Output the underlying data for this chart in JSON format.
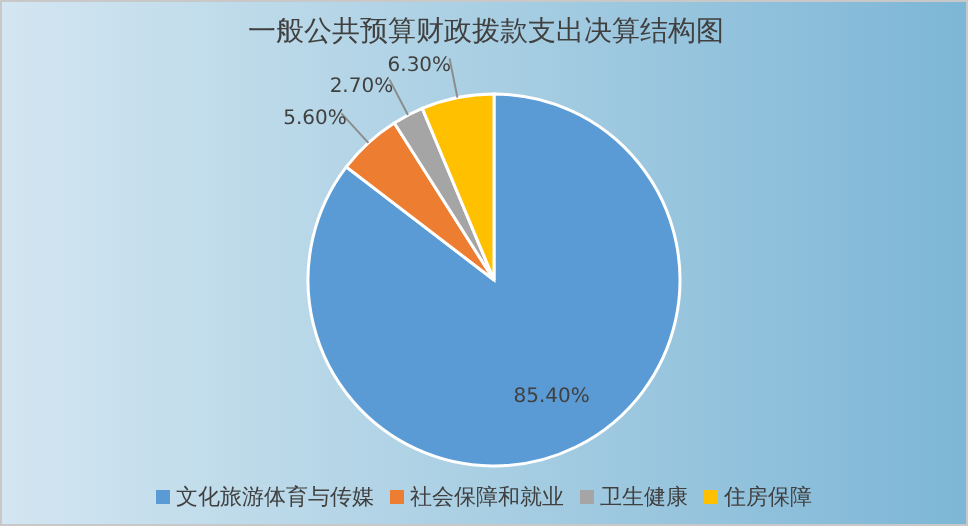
{
  "chart_data": {
    "type": "pie",
    "title": "一般公共预算财政拨款支出决算结构图",
    "categories": [
      "文化旅游体育与传媒",
      "社会保障和就业",
      "卫生健康",
      "住房保障"
    ],
    "values": [
      85.4,
      5.6,
      2.7,
      6.3
    ],
    "colors": [
      "#5b9bd5",
      "#ed7d31",
      "#a5a5a5",
      "#ffc000"
    ],
    "value_labels": [
      "85.40%",
      "5.60%",
      "2.70%",
      "6.30%"
    ],
    "legend": "bottom"
  }
}
